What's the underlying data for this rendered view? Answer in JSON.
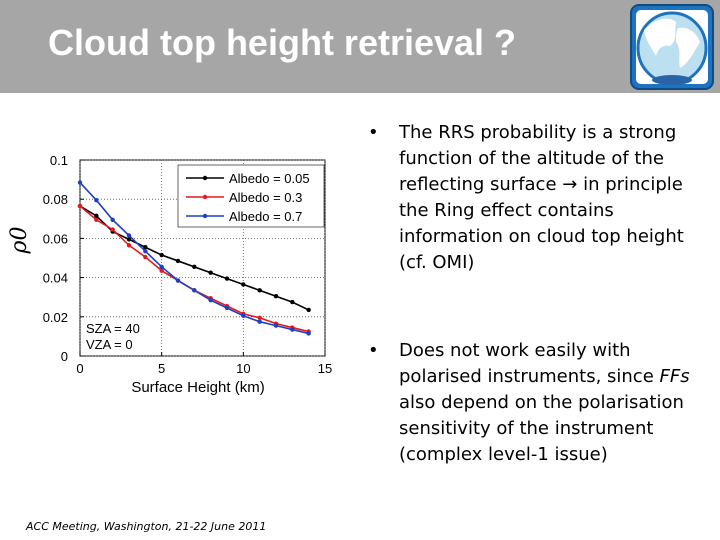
{
  "header": {
    "title": "Cloud top height retrieval ?"
  },
  "bullets": [
    {
      "marker": "•",
      "parts": [
        "The RRS probability is a strong function of the altitude of the reflecting surface ",
        "→",
        " in principle the Ring effect contains information on cloud top height (cf. OMI)"
      ]
    },
    {
      "marker": "•",
      "parts": [
        "Does not work easily with polarised instruments, since ",
        "FFs",
        " also depend on the polarisation sensitivity of the instrument (complex level-1 issue)"
      ]
    }
  ],
  "footer": {
    "text": "ACC Meeting, Washington, 21-22 June 2011"
  },
  "chart_data": {
    "type": "line",
    "xlabel": "Surface Height (km)",
    "ylabel": "ρ0",
    "xlim": [
      0,
      15
    ],
    "ylim": [
      0,
      0.1
    ],
    "xticks": [
      "0",
      "5",
      "10",
      "15"
    ],
    "yticks": [
      "0",
      "0.02",
      "0.04",
      "0.06",
      "0.08",
      "0.1"
    ],
    "grid": true,
    "legend_position": "top-right",
    "annotations": [
      "SZA = 40",
      "VZA = 0"
    ],
    "x": [
      0,
      1,
      2,
      3,
      4,
      5,
      6,
      7,
      8,
      9,
      10,
      11,
      12,
      13,
      14
    ],
    "series": [
      {
        "name": "Albedo = 0.05",
        "color": "#000000",
        "values": [
          0.0765,
          0.0715,
          0.0635,
          0.0595,
          0.0555,
          0.0515,
          0.0485,
          0.0455,
          0.0425,
          0.0395,
          0.0365,
          0.0335,
          0.0305,
          0.0275,
          0.0235
        ]
      },
      {
        "name": "Albedo = 0.3",
        "color": "#e41a1c",
        "values": [
          0.0765,
          0.0695,
          0.0645,
          0.0565,
          0.0505,
          0.0435,
          0.0385,
          0.0335,
          0.0295,
          0.0255,
          0.0215,
          0.0195,
          0.0165,
          0.0145,
          0.0125
        ]
      },
      {
        "name": "Albedo = 0.7",
        "color": "#1f3fc4",
        "values": [
          0.0885,
          0.0795,
          0.0695,
          0.0615,
          0.0535,
          0.0455,
          0.0385,
          0.0335,
          0.0285,
          0.0245,
          0.0205,
          0.0175,
          0.0155,
          0.0135,
          0.0115
        ]
      }
    ]
  }
}
